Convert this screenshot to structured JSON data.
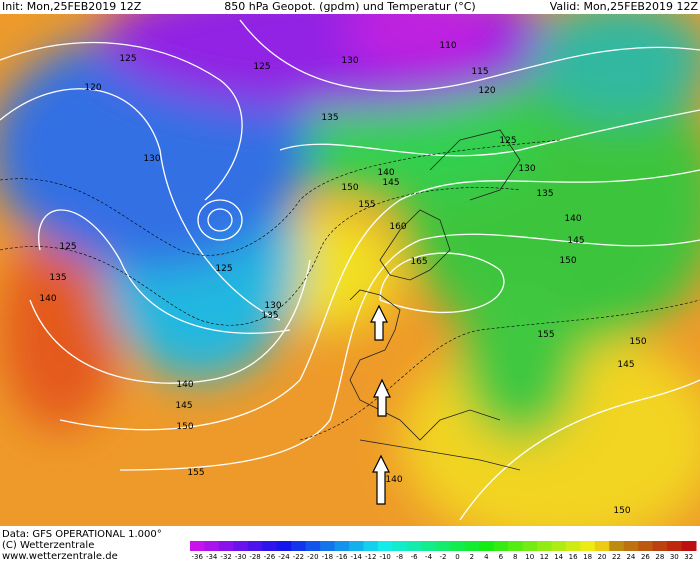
{
  "header": {
    "init": "Init: Mon,25FEB2019 12Z",
    "title": "850 hPa Geopot. (gpdm) und Temperatur (°C)",
    "valid": "Valid: Mon,25FEB2019 12Z"
  },
  "footer": {
    "data": "Data: GFS OPERATIONAL 1.000°",
    "copyright": "(C) Wetterzentrale",
    "url": "www.wetterzentrale.de"
  },
  "map": {
    "contour_labels": [
      125,
      120,
      125,
      130,
      110,
      115,
      120,
      135,
      130,
      125,
      130,
      140,
      145,
      150,
      135,
      155,
      140,
      160,
      145,
      125,
      150,
      165,
      135,
      125,
      140,
      130,
      135,
      155,
      150,
      145,
      140,
      145,
      150,
      155,
      140,
      150
    ]
  },
  "colorbar": {
    "ticks": [
      -36,
      -34,
      -32,
      -30,
      -28,
      -26,
      -24,
      -22,
      -20,
      -18,
      -16,
      -14,
      -12,
      -10,
      -8,
      -6,
      -4,
      -2,
      0,
      2,
      4,
      6,
      8,
      10,
      12,
      14,
      16,
      18,
      20,
      22,
      24,
      26,
      28,
      30,
      32
    ]
  }
}
